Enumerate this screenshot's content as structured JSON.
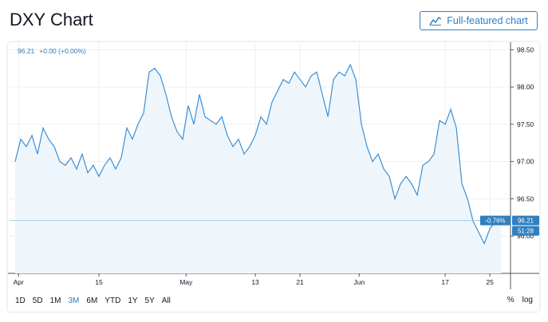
{
  "page": {
    "title": "DXY Chart"
  },
  "toolbar": {
    "full_chart_label": "Full-featured chart",
    "full_chart_icon": "chart-line-icon"
  },
  "legend": {
    "price": "96.21",
    "change": "+0.00 (+0.00%)"
  },
  "badges": {
    "change_pct": "-0.76%",
    "last_price": "96.21",
    "countdown": "51:28"
  },
  "range_buttons": [
    "1D",
    "5D",
    "1M",
    "3M",
    "6M",
    "YTD",
    "1Y",
    "5Y",
    "All"
  ],
  "active_range": "3M",
  "scale_buttons": {
    "percent": "%",
    "log": "log"
  },
  "colors": {
    "accent": "#2f7fc1",
    "line": "#3d8fd6",
    "area": "#eef6fc",
    "grid": "#eceff2"
  },
  "chart_data": {
    "type": "area",
    "ylim": [
      95.5,
      98.6
    ],
    "y_ticks": [
      "98.50",
      "98.00",
      "97.50",
      "97.00",
      "96.50",
      "96.00"
    ],
    "y_tick_values": [
      98.5,
      98.0,
      97.5,
      97.0,
      96.5,
      96.0
    ],
    "x_ticks": [
      {
        "label": "Apr",
        "x": 0.6
      },
      {
        "label": "15",
        "x": 15
      },
      {
        "label": "May",
        "x": 30.6
      },
      {
        "label": "13",
        "x": 43
      },
      {
        "label": "21",
        "x": 51
      },
      {
        "label": "Jun",
        "x": 61.6
      },
      {
        "label": "17",
        "x": 77
      },
      {
        "label": "25",
        "x": 85
      }
    ],
    "x_range": [
      -1,
      88.7
    ],
    "last_value": 96.21,
    "series": [
      {
        "x": [
          0,
          1,
          2,
          3,
          4,
          5,
          6,
          7,
          8,
          9,
          10,
          11,
          12,
          13,
          14,
          15,
          16,
          17,
          18,
          19,
          20,
          21,
          22,
          23,
          24,
          25,
          26,
          27,
          28,
          29,
          30,
          31,
          32,
          33,
          34,
          35,
          36,
          37,
          38,
          39,
          40,
          41,
          42,
          43,
          44,
          45,
          46,
          47,
          48,
          49,
          50,
          51,
          52,
          53,
          54,
          55,
          56,
          57,
          58,
          59,
          60,
          61,
          62,
          63,
          64,
          65,
          66,
          67,
          68,
          69,
          70,
          71,
          72,
          73,
          74,
          75,
          76,
          77,
          78,
          79,
          80,
          81,
          82,
          83,
          84,
          85,
          86,
          87
        ],
        "values": [
          97.0,
          97.3,
          97.2,
          97.35,
          97.1,
          97.45,
          97.3,
          97.2,
          97.0,
          96.95,
          97.05,
          96.9,
          97.1,
          96.85,
          96.95,
          96.8,
          96.95,
          97.05,
          96.9,
          97.05,
          97.45,
          97.3,
          97.5,
          97.65,
          98.2,
          98.25,
          98.15,
          97.9,
          97.6,
          97.4,
          97.3,
          97.75,
          97.5,
          97.9,
          97.6,
          97.55,
          97.5,
          97.6,
          97.35,
          97.2,
          97.3,
          97.1,
          97.2,
          97.35,
          97.6,
          97.5,
          97.8,
          97.95,
          98.1,
          98.05,
          98.2,
          98.1,
          98.0,
          98.15,
          98.2,
          97.9,
          97.6,
          98.1,
          98.2,
          98.15,
          98.3,
          98.1,
          97.5,
          97.2,
          97.0,
          97.1,
          96.9,
          96.8,
          96.5,
          96.7,
          96.8,
          96.7,
          96.55,
          96.95,
          97.0,
          97.1,
          97.55,
          97.5,
          97.7,
          97.45,
          96.7,
          96.5,
          96.2,
          96.05,
          95.9,
          96.1,
          96.2,
          96.21
        ]
      }
    ]
  }
}
